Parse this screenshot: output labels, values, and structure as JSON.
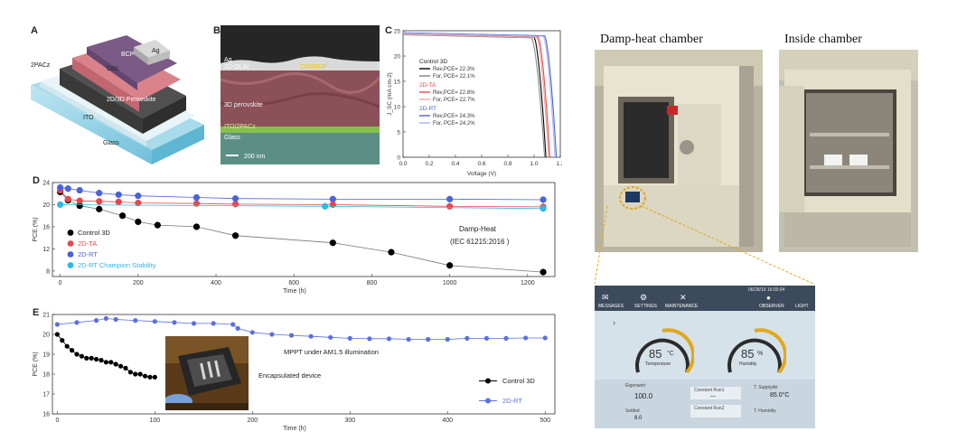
{
  "panel_a": {
    "letter": "A",
    "layers": [
      "Ag",
      "BCP",
      "C60",
      "2PACz",
      "2D/3D Perovskite",
      "ITO",
      "Glass"
    ]
  },
  "panel_b": {
    "letter": "B",
    "labels": [
      "Ag",
      "2D-OLAI",
      "C60/BCP",
      "3D perovskite",
      "ITO/2PACz",
      "Glass"
    ],
    "scale_bar": "200 nm"
  },
  "panel_c": {
    "letter": "C",
    "chart_data": {
      "type": "line",
      "xlabel": "Voltage (V)",
      "ylabel": "J_SC (mA cm-2)",
      "xlim": [
        0.0,
        1.2
      ],
      "ylim": [
        0,
        25
      ],
      "xticks": [
        "0.0",
        "0.2",
        "0.4",
        "0.6",
        "0.8",
        "1.0",
        "1.2"
      ],
      "yticks": [
        "0",
        "5",
        "10",
        "15",
        "20",
        "25"
      ],
      "legend": {
        "groups": [
          {
            "title": "Control 3D",
            "color": "#000000",
            "entries": [
              "Rev,PCE= 22.3%",
              "For, PCE= 22.1%"
            ]
          },
          {
            "title": "2D-TA",
            "color": "#e8484a",
            "entries": [
              "Rev,PCE= 22.8%",
              "For, PCE= 22.7%"
            ]
          },
          {
            "title": "2D-RT",
            "color": "#4a63d8",
            "entries": [
              "Rev,PCE= 24.3%",
              "For, PCE= 24.2%"
            ]
          }
        ]
      },
      "series": [
        {
          "name": "Control 3D Rev",
          "color": "#000000",
          "jsc": 24.3,
          "voc": 1.09,
          "knee": 1.0
        },
        {
          "name": "Control 3D For",
          "color": "#8a8a8a",
          "jsc": 24.2,
          "voc": 1.08,
          "knee": 0.98
        },
        {
          "name": "2D-TA Rev",
          "color": "#e8484a",
          "jsc": 24.4,
          "voc": 1.12,
          "knee": 1.03
        },
        {
          "name": "2D-TA For",
          "color": "#f2a0a0",
          "jsc": 24.3,
          "voc": 1.11,
          "knee": 1.02
        },
        {
          "name": "2D-RT Rev",
          "color": "#4a63d8",
          "jsc": 24.6,
          "voc": 1.17,
          "knee": 1.08
        },
        {
          "name": "2D-RT For",
          "color": "#a9b6ee",
          "jsc": 24.5,
          "voc": 1.16,
          "knee": 1.07
        }
      ]
    }
  },
  "panel_d": {
    "letter": "D",
    "annotation_1": "Damp-Heat",
    "annotation_2": "(IEC 61215:2016 )",
    "chart_data": {
      "type": "line",
      "xlabel": "Time (h)",
      "ylabel": "PCE (%)",
      "xlim": [
        -20,
        1270
      ],
      "ylim": [
        7,
        24
      ],
      "xticks": [
        0,
        200,
        400,
        600,
        800,
        1000,
        1200
      ],
      "yticks": [
        8,
        12,
        16,
        20,
        24
      ],
      "series": [
        {
          "name": "Control 3D",
          "color": "#000000",
          "x": [
            0,
            20,
            50,
            100,
            160,
            200,
            250,
            350,
            450,
            700,
            850,
            1000,
            1240
          ],
          "y": [
            22.3,
            20.8,
            19.8,
            19.2,
            18.0,
            16.9,
            16.3,
            16.0,
            14.4,
            13.1,
            11.4,
            9.0,
            7.8
          ]
        },
        {
          "name": "2D-TA",
          "color": "#e8484a",
          "x": [
            0,
            20,
            50,
            100,
            150,
            200,
            350,
            450,
            700,
            1000,
            1240
          ],
          "y": [
            22.6,
            21.0,
            20.7,
            20.6,
            20.5,
            20.3,
            20.2,
            20.1,
            20.0,
            19.7,
            19.6
          ]
        },
        {
          "name": "2D-RT",
          "color": "#4a63d8",
          "x": [
            0,
            20,
            50,
            100,
            150,
            200,
            350,
            450,
            700,
            1000,
            1240
          ],
          "y": [
            23.1,
            22.9,
            22.6,
            22.1,
            21.8,
            21.6,
            21.3,
            21.1,
            21.0,
            21.0,
            20.9
          ]
        },
        {
          "name": "2D-RT Champion Stability",
          "color": "#2eb7ea",
          "x": [
            0,
            680,
            1240
          ],
          "y": [
            20.0,
            19.7,
            19.3
          ]
        }
      ]
    }
  },
  "panel_e": {
    "letter": "E",
    "annotation_mppt": "MPPT under AM1.5 illumination",
    "annotation_device": "Encapsulated device",
    "chart_data": {
      "type": "line",
      "xlabel": "Time (h)",
      "ylabel": "PCE (%)",
      "xlim": [
        -5,
        510
      ],
      "ylim": [
        16,
        21
      ],
      "xticks": [
        0,
        100,
        200,
        300,
        400,
        500
      ],
      "yticks": [
        16,
        17,
        18,
        19,
        20,
        21
      ],
      "series": [
        {
          "name": "Control 3D",
          "color": "#000000",
          "x": [
            0,
            5,
            10,
            15,
            20,
            25,
            30,
            35,
            40,
            45,
            50,
            55,
            60,
            65,
            70,
            75,
            80,
            85,
            90,
            95,
            100
          ],
          "y": [
            20.0,
            19.7,
            19.4,
            19.2,
            19.0,
            18.9,
            18.8,
            18.8,
            18.75,
            18.7,
            18.6,
            18.6,
            18.5,
            18.4,
            18.3,
            18.1,
            18.0,
            18.0,
            17.9,
            17.85,
            17.85
          ]
        },
        {
          "name": "2D-RT",
          "color": "#5b6fe0",
          "x": [
            0,
            20,
            40,
            50,
            60,
            80,
            100,
            120,
            140,
            160,
            180,
            185,
            200,
            220,
            240,
            260,
            280,
            300,
            320,
            340,
            360,
            380,
            400,
            420,
            440,
            460,
            480,
            500
          ],
          "y": [
            20.5,
            20.6,
            20.7,
            20.8,
            20.75,
            20.7,
            20.65,
            20.6,
            20.55,
            20.55,
            20.5,
            20.3,
            20.1,
            20.0,
            19.95,
            19.9,
            19.85,
            19.8,
            19.78,
            19.78,
            19.75,
            19.75,
            19.75,
            19.8,
            19.8,
            19.8,
            19.82,
            19.82
          ]
        }
      ]
    }
  },
  "photos": {
    "damp_heat_title": "Damp-heat chamber",
    "inside_title": "Inside chamber"
  },
  "control_screen": {
    "status": "06/28/19 16:00:04",
    "menu": [
      "MESSAGES",
      "SETTINGS",
      "MAINTENANCE",
      "OBSERVER",
      "LIGHT"
    ],
    "temperature_value": "85",
    "temperature_unit": "°C",
    "temperature_label": "Temperature",
    "humidity_value": "85",
    "humidity_unit": "%",
    "humidity_label": "Humidity",
    "field_1_label": "Eigenwert",
    "field_1_value": "100.0",
    "field_2_label": "Constant Run1",
    "field_2_value": "—",
    "field_3_label": "Constant Run2",
    "field_4_label": "T. SupplyAir",
    "field_4_value": "85.0°C",
    "field_5_label": "T. Humidity",
    "field_6_label": "Settled",
    "field_6_value": "8.0"
  },
  "colors": {
    "control": "#000000",
    "ta": "#e8484a",
    "rt": "#4a63d8",
    "champion": "#2eb7ea",
    "callout": "#e0a81c"
  }
}
